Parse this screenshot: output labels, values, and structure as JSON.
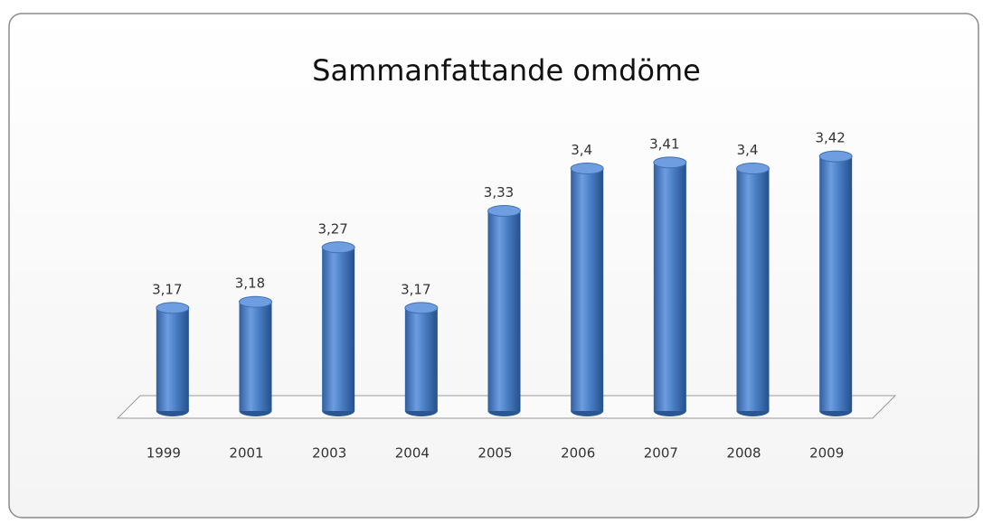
{
  "chart_data": {
    "type": "bar",
    "title": "Sammanfattande omdöme",
    "categories": [
      "1999",
      "2001",
      "2003",
      "2004",
      "2005",
      "2006",
      "2007",
      "2008",
      "2009"
    ],
    "values": [
      3.17,
      3.18,
      3.27,
      3.17,
      3.33,
      3.4,
      3.41,
      3.4,
      3.42
    ],
    "value_labels": [
      "3,17",
      "3,18",
      "3,27",
      "3,17",
      "3,33",
      "3,4",
      "3,41",
      "3,4",
      "3,42"
    ],
    "color": "#4a7ec4",
    "ylim": [
      3.0,
      3.45
    ]
  }
}
